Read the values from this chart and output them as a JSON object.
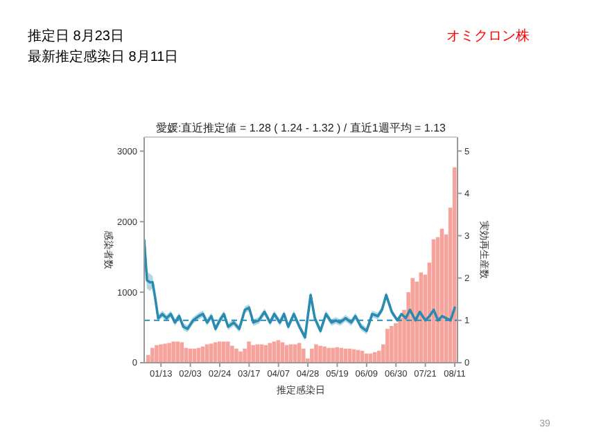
{
  "chart_data": {
    "type": "bar",
    "title": "愛媛:直近推定値 = 1.28 ( 1.24 - 1.32 ) / 直近1週平均 = 1.13",
    "xlabel": "推定感染日",
    "ylabel": "感染者数",
    "y2label": "実効再生産数",
    "annotations": [
      "推定日  8月23日",
      "最新推定感染日  8月11日",
      "オミクロン株",
      "39"
    ],
    "xlim": [
      "--01-01",
      "--08-13"
    ],
    "xticks": [
      {
        "value": "--01-13",
        "label": "01/13"
      },
      {
        "value": "--02-03",
        "label": "02/03"
      },
      {
        "value": "--02-24",
        "label": "02/24"
      },
      {
        "value": "--03-17",
        "label": "03/17"
      },
      {
        "value": "--04-07",
        "label": "04/07"
      },
      {
        "value": "--04-28",
        "label": "04/28"
      },
      {
        "value": "--05-19",
        "label": "05/19"
      },
      {
        "value": "--06-09",
        "label": "06/09"
      },
      {
        "value": "--06-30",
        "label": "06/30"
      },
      {
        "value": "--07-21",
        "label": "07/21"
      },
      {
        "value": "--08-11",
        "label": "08/11"
      }
    ],
    "ylim": [
      0,
      3200
    ],
    "yticks": [
      0,
      1000,
      2000,
      3000
    ],
    "y2lim": [
      0,
      5.33
    ],
    "y2ticks": [
      0,
      1,
      2,
      3,
      4,
      5
    ],
    "ref_lines": [
      {
        "axis": "y2",
        "value": 1,
        "color": "#2a8bb0",
        "line_style": "dashed"
      }
    ],
    "series": [
      {
        "color": "#f7a39b",
        "x": [
          "--01-04",
          "--01-07",
          "--01-10",
          "--01-13",
          "--01-16",
          "--01-19",
          "--01-22",
          "--01-25",
          "--01-28",
          "--01-31",
          "--02-03",
          "--02-06",
          "--02-09",
          "--02-12",
          "--02-15",
          "--02-18",
          "--02-21",
          "--02-24",
          "--02-27",
          "--03-02",
          "--03-05",
          "--03-08",
          "--03-11",
          "--03-14",
          "--03-17",
          "--03-20",
          "--03-23",
          "--03-26",
          "--03-29",
          "--04-01",
          "--04-04",
          "--04-07",
          "--04-10",
          "--04-13",
          "--04-16",
          "--04-19",
          "--04-22",
          "--04-25",
          "--04-28",
          "--05-01",
          "--05-04",
          "--05-07",
          "--05-10",
          "--05-13",
          "--05-16",
          "--05-19",
          "--05-22",
          "--05-25",
          "--05-28",
          "--05-31",
          "--06-03",
          "--06-06",
          "--06-09",
          "--06-12",
          "--06-15",
          "--06-18",
          "--06-21",
          "--06-24",
          "--06-27",
          "--06-30",
          "--07-03",
          "--07-06",
          "--07-09",
          "--07-12",
          "--07-15",
          "--07-18",
          "--07-21",
          "--07-24",
          "--07-27",
          "--07-30",
          "--08-02",
          "--08-05",
          "--08-08",
          "--08-11"
        ],
        "values": [
          110,
          210,
          250,
          260,
          270,
          280,
          300,
          300,
          290,
          210,
          200,
          200,
          210,
          230,
          260,
          270,
          290,
          300,
          300,
          300,
          240,
          200,
          160,
          200,
          300,
          250,
          260,
          260,
          250,
          280,
          300,
          320,
          290,
          250,
          260,
          260,
          280,
          200,
          60,
          200,
          260,
          240,
          230,
          210,
          210,
          220,
          210,
          200,
          200,
          190,
          180,
          170,
          130,
          130,
          150,
          170,
          260,
          480,
          520,
          560,
          640,
          750,
          1000,
          1200,
          1150,
          1280,
          1250,
          1420,
          1750,
          1780,
          1900,
          1820,
          2200,
          2770
        ]
      },
      {
        "type": "line",
        "axis": "y2",
        "color": "#2a8bb0",
        "x": [
          "--01-01",
          "--01-03",
          "--01-05",
          "--01-07",
          "--01-09",
          "--01-11",
          "--01-14",
          "--01-17",
          "--01-20",
          "--01-23",
          "--01-26",
          "--01-29",
          "--02-01",
          "--02-05",
          "--02-09",
          "--02-12",
          "--02-15",
          "--02-18",
          "--02-21",
          "--02-24",
          "--02-27",
          "--03-02",
          "--03-06",
          "--03-10",
          "--03-14",
          "--03-17",
          "--03-20",
          "--03-24",
          "--03-28",
          "--04-01",
          "--04-04",
          "--04-08",
          "--04-11",
          "--04-14",
          "--04-18",
          "--04-22",
          "--04-26",
          "--04-30",
          "--05-03",
          "--05-07",
          "--05-11",
          "--05-15",
          "--05-18",
          "--05-21",
          "--05-25",
          "--05-29",
          "--06-01",
          "--06-05",
          "--06-09",
          "--06-13",
          "--06-17",
          "--06-20",
          "--06-23",
          "--06-27",
          "--07-01",
          "--07-04",
          "--07-07",
          "--07-10",
          "--07-14",
          "--07-17",
          "--07-21",
          "--07-24",
          "--07-27",
          "--07-30",
          "--08-02",
          "--08-05",
          "--08-08",
          "--08-11"
        ],
        "values": [
          2.9,
          1.95,
          1.9,
          1.9,
          1.5,
          1.05,
          1.15,
          1.05,
          1.15,
          0.95,
          1.1,
          0.85,
          0.8,
          1.0,
          1.1,
          1.15,
          0.95,
          1.1,
          0.8,
          1.0,
          1.15,
          0.85,
          0.95,
          0.8,
          1.25,
          1.3,
          0.95,
          1.0,
          1.2,
          0.95,
          1.15,
          0.95,
          1.15,
          0.85,
          1.15,
          0.85,
          0.6,
          1.6,
          1.05,
          0.75,
          1.15,
          0.95,
          1.0,
          0.95,
          1.05,
          0.95,
          1.1,
          0.85,
          0.75,
          1.15,
          1.1,
          1.25,
          1.6,
          1.2,
          1.0,
          1.15,
          1.05,
          1.25,
          1.0,
          1.2,
          1.0,
          1.1,
          1.25,
          1.0,
          1.1,
          1.05,
          1.0,
          1.3
        ],
        "lower": [
          2.6,
          1.75,
          1.7,
          1.75,
          1.4,
          0.97,
          1.07,
          0.97,
          1.07,
          0.87,
          1.02,
          0.77,
          0.72,
          0.92,
          1.02,
          1.07,
          0.87,
          1.02,
          0.72,
          0.92,
          1.07,
          0.77,
          0.87,
          0.72,
          1.17,
          1.22,
          0.87,
          0.92,
          1.12,
          0.87,
          1.07,
          0.87,
          1.07,
          0.77,
          1.07,
          0.77,
          0.52,
          1.52,
          0.97,
          0.67,
          1.07,
          0.87,
          0.92,
          0.87,
          0.97,
          0.87,
          1.02,
          0.77,
          0.67,
          1.07,
          1.02,
          1.17,
          1.52,
          1.12,
          0.97,
          1.12,
          1.02,
          1.22,
          0.97,
          1.17,
          0.97,
          1.07,
          1.22,
          0.97,
          1.07,
          1.02,
          0.97,
          1.26
        ],
        "upper": [
          3.2,
          2.15,
          2.1,
          2.05,
          1.6,
          1.13,
          1.23,
          1.13,
          1.23,
          1.03,
          1.18,
          0.93,
          0.88,
          1.08,
          1.18,
          1.23,
          1.03,
          1.18,
          0.88,
          1.08,
          1.23,
          0.93,
          1.03,
          0.88,
          1.33,
          1.38,
          1.03,
          1.08,
          1.28,
          1.03,
          1.23,
          1.03,
          1.23,
          0.93,
          1.23,
          0.93,
          0.68,
          1.68,
          1.13,
          0.83,
          1.23,
          1.03,
          1.08,
          1.03,
          1.13,
          1.03,
          1.18,
          0.93,
          0.83,
          1.23,
          1.18,
          1.33,
          1.68,
          1.28,
          1.03,
          1.18,
          1.08,
          1.28,
          1.03,
          1.23,
          1.03,
          1.13,
          1.28,
          1.03,
          1.13,
          1.08,
          1.03,
          1.34
        ]
      }
    ]
  }
}
